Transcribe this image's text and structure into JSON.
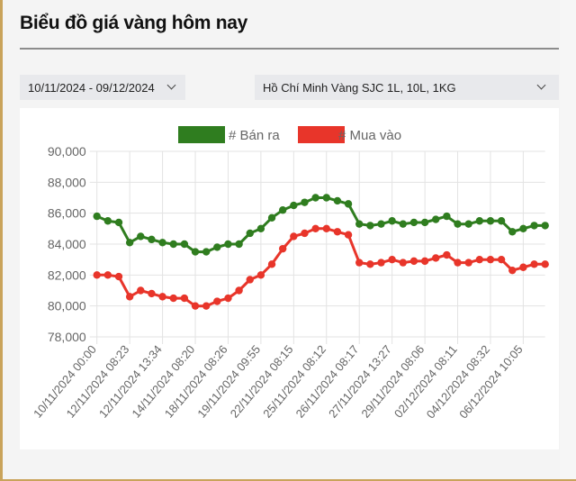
{
  "page": {
    "title": "Biểu đồ giá vàng hôm nay"
  },
  "filters": {
    "date_range": "10/11/2024 - 09/12/2024",
    "location_product": "Hồ Chí Minh Vàng SJC 1L, 10L, 1KG"
  },
  "icons": {
    "date_dropdown": "chevron-down-icon",
    "location_dropdown": "chevron-down-icon"
  },
  "colors": {
    "frame": "#c9a35a",
    "sell": "#2f7d1f",
    "buy": "#e8352a",
    "grid": "#e3e3e3",
    "tick_text": "#666666"
  },
  "chart_data": {
    "type": "line",
    "title": "",
    "xlabel": "",
    "ylabel": "",
    "ylim": [
      78000,
      90000
    ],
    "yticks": [
      78000,
      80000,
      82000,
      84000,
      86000,
      88000,
      90000
    ],
    "ytick_labels": [
      "78,000",
      "80,000",
      "82,000",
      "84,000",
      "86,000",
      "88,000",
      "90,000"
    ],
    "grid": true,
    "legend_position": "top",
    "x_tick_labels": [
      "10/11/2024 00:00",
      "12/11/2024 08:23",
      "12/11/2024 13:34",
      "14/11/2024 08:20",
      "18/11/2024 08:26",
      "19/11/2024 09:55",
      "22/11/2024 08:15",
      "25/11/2024 08:12",
      "26/11/2024 08:17",
      "27/11/2024 13:27",
      "29/11/2024 08:06",
      "02/12/2024 08:11",
      "04/12/2024 08:32",
      "06/12/2024 10:05"
    ],
    "x_tick_every": 3,
    "point_count": 42,
    "series": [
      {
        "name": "# Bán ra",
        "color": "#2f7d1f",
        "values": [
          85800,
          85500,
          85400,
          84100,
          84500,
          84300,
          84100,
          84000,
          84000,
          83500,
          83500,
          83800,
          84000,
          84000,
          84700,
          85000,
          85700,
          86200,
          86500,
          86700,
          87000,
          87000,
          86800,
          86600,
          85300,
          85200,
          85300,
          85500,
          85300,
          85400,
          85400,
          85600,
          85800,
          85300,
          85300,
          85500,
          85500,
          85500,
          84800,
          85000,
          85200,
          85200
        ]
      },
      {
        "name": "# Mua vào",
        "color": "#e8352a",
        "values": [
          82000,
          82000,
          81900,
          80600,
          81000,
          80800,
          80600,
          80500,
          80500,
          80000,
          80000,
          80300,
          80500,
          81000,
          81700,
          82000,
          82700,
          83700,
          84500,
          84700,
          85000,
          85000,
          84800,
          84600,
          82800,
          82700,
          82800,
          83000,
          82800,
          82900,
          82900,
          83100,
          83300,
          82800,
          82800,
          83000,
          83000,
          83000,
          82300,
          82500,
          82700,
          82700
        ]
      }
    ]
  }
}
